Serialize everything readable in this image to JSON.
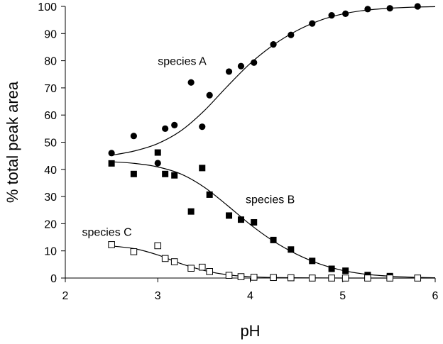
{
  "chart_data": {
    "type": "scatter",
    "xlabel": "pH",
    "ylabel": "% total peak area",
    "xlim": [
      2,
      6
    ],
    "ylim": [
      0,
      100
    ],
    "xticks": [
      2,
      3,
      4,
      5,
      6
    ],
    "yticks": [
      0,
      10,
      20,
      30,
      40,
      50,
      60,
      70,
      80,
      90,
      100
    ],
    "grid": false,
    "annotations": [
      {
        "text": "species A",
        "series": "species A"
      },
      {
        "text": "species B",
        "series": "species B"
      },
      {
        "text": "species C",
        "series": "species C"
      }
    ],
    "series": [
      {
        "name": "species A",
        "marker": "filled-circle",
        "color": "#000000",
        "points": [
          [
            2.5,
            46
          ],
          [
            2.74,
            52.3
          ],
          [
            3.0,
            42.3
          ],
          [
            3.08,
            55
          ],
          [
            3.18,
            56.3
          ],
          [
            3.36,
            72
          ],
          [
            3.48,
            55.7
          ],
          [
            3.56,
            67.3
          ],
          [
            3.77,
            76
          ],
          [
            3.9,
            78
          ],
          [
            4.04,
            79.3
          ],
          [
            4.25,
            86
          ],
          [
            4.44,
            89.5
          ],
          [
            4.67,
            93.7
          ],
          [
            4.88,
            96.7
          ],
          [
            5.03,
            97.3
          ],
          [
            5.27,
            99
          ],
          [
            5.51,
            99.3
          ],
          [
            5.81,
            100
          ]
        ],
        "fit": [
          [
            2.5,
            45.2
          ],
          [
            2.75,
            46.8
          ],
          [
            3.0,
            49.5
          ],
          [
            3.25,
            54.2
          ],
          [
            3.5,
            61.5
          ],
          [
            3.75,
            70.5
          ],
          [
            4.0,
            79
          ],
          [
            4.25,
            85.8
          ],
          [
            4.5,
            91
          ],
          [
            4.75,
            94.8
          ],
          [
            5.0,
            97.2
          ],
          [
            5.25,
            98.6
          ],
          [
            5.5,
            99.3
          ],
          [
            5.75,
            99.7
          ],
          [
            6.0,
            99.9
          ]
        ]
      },
      {
        "name": "species B",
        "marker": "filled-square",
        "color": "#000000",
        "points": [
          [
            2.5,
            42.2
          ],
          [
            2.74,
            38.3
          ],
          [
            3.0,
            46.2
          ],
          [
            3.08,
            38.3
          ],
          [
            3.18,
            37.8
          ],
          [
            3.36,
            24.5
          ],
          [
            3.48,
            40.5
          ],
          [
            3.56,
            30.7
          ],
          [
            3.77,
            23
          ],
          [
            3.9,
            21.5
          ],
          [
            4.04,
            20.5
          ],
          [
            4.25,
            14
          ],
          [
            4.44,
            10.5
          ],
          [
            4.67,
            6.3
          ],
          [
            4.88,
            3.4
          ],
          [
            5.03,
            2.7
          ],
          [
            5.27,
            1.1
          ],
          [
            5.51,
            0.7
          ],
          [
            5.81,
            0
          ]
        ],
        "fit": [
          [
            2.5,
            42.8
          ],
          [
            2.75,
            42.2
          ],
          [
            3.0,
            40.9
          ],
          [
            3.25,
            38.3
          ],
          [
            3.5,
            33.5
          ],
          [
            3.75,
            26.8
          ],
          [
            4.0,
            19.7
          ],
          [
            4.25,
            13.6
          ],
          [
            4.5,
            8.8
          ],
          [
            4.75,
            5.2
          ],
          [
            5.0,
            2.8
          ],
          [
            5.25,
            1.4
          ],
          [
            5.5,
            0.7
          ],
          [
            5.75,
            0.3
          ],
          [
            6.0,
            0.1
          ]
        ]
      },
      {
        "name": "species C",
        "marker": "open-square",
        "color": "#000000",
        "points": [
          [
            2.5,
            12.3
          ],
          [
            2.74,
            9.7
          ],
          [
            3.0,
            11.9
          ],
          [
            3.08,
            7.2
          ],
          [
            3.18,
            6
          ],
          [
            3.36,
            3.6
          ],
          [
            3.48,
            4
          ],
          [
            3.56,
            2.4
          ],
          [
            3.77,
            1
          ],
          [
            3.9,
            0.5
          ],
          [
            4.04,
            0.3
          ],
          [
            4.25,
            0.2
          ],
          [
            4.44,
            0.1
          ],
          [
            4.67,
            0
          ],
          [
            4.88,
            0
          ],
          [
            5.03,
            0
          ],
          [
            5.27,
            0
          ],
          [
            5.51,
            0
          ],
          [
            5.81,
            0
          ]
        ],
        "fit": [
          [
            2.5,
            11.8
          ],
          [
            2.75,
            10.8
          ],
          [
            3.0,
            8.5
          ],
          [
            3.25,
            5.3
          ],
          [
            3.5,
            2.8
          ],
          [
            3.75,
            1.2
          ],
          [
            4.0,
            0.5
          ],
          [
            4.25,
            0.2
          ],
          [
            4.5,
            0.1
          ],
          [
            5.0,
            0
          ],
          [
            6.0,
            0
          ]
        ]
      }
    ]
  }
}
